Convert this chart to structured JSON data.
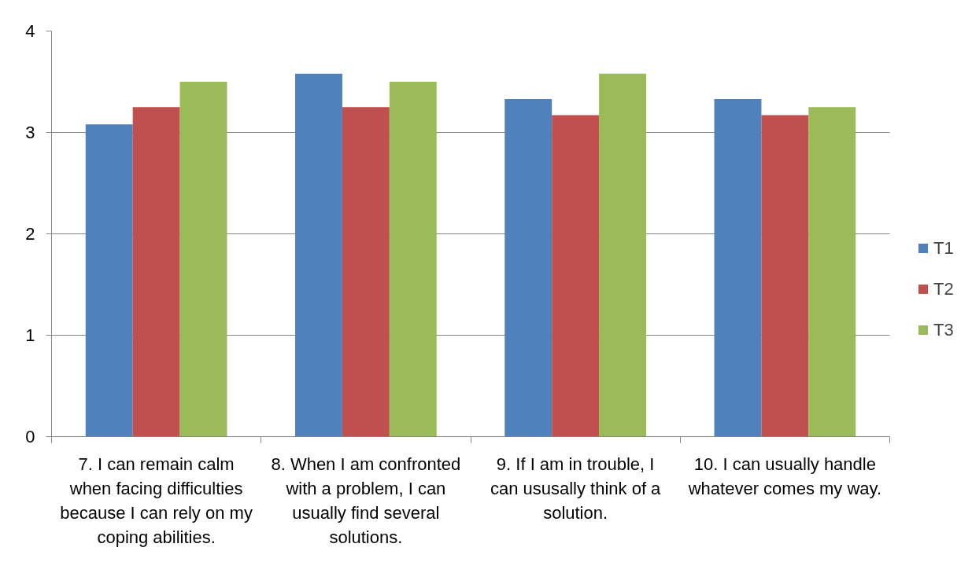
{
  "chart_data": {
    "type": "bar",
    "categories": [
      "7. I can remain calm when facing difficulties because I can rely on my coping abilities.",
      "8. When I am confronted with a problem, I can usually find several solutions.",
      "9. If I am in trouble, I can ususally think of a solution.",
      "10. I can usually handle whatever comes my way."
    ],
    "series": [
      {
        "name": "T1",
        "color": "#4f81bd",
        "values": [
          3.08,
          3.58,
          3.33,
          3.33
        ]
      },
      {
        "name": "T2",
        "color": "#c0504d",
        "values": [
          3.25,
          3.25,
          3.17,
          3.17
        ]
      },
      {
        "name": "T3",
        "color": "#9bbb59",
        "values": [
          3.5,
          3.5,
          3.58,
          3.25
        ]
      }
    ],
    "ylim": [
      0,
      4
    ],
    "yticks": [
      0,
      1,
      2,
      3,
      4
    ],
    "grid": "y",
    "legend": "right"
  }
}
